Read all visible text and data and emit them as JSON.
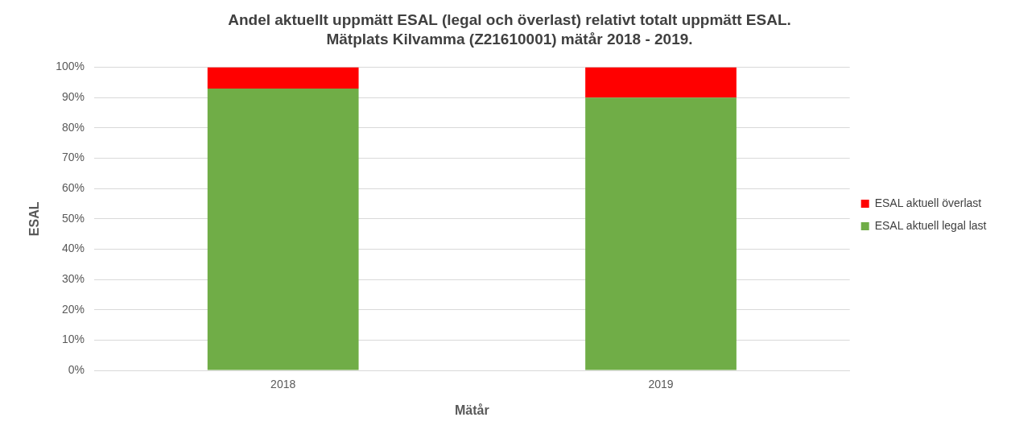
{
  "chart_data": {
    "type": "bar",
    "title": "Andel aktuellt uppmätt ESAL (legal och överlast) relativt totalt uppmätt ESAL.",
    "subtitle": "Mätplats Kilvamma (Z21610001) mätår 2018 - 2019.",
    "xlabel": "Mätår",
    "ylabel": "ESAL",
    "categories": [
      "2018",
      "2019"
    ],
    "stacked": true,
    "series": [
      {
        "name": "ESAL aktuell legal last",
        "color": "#70ad47",
        "values": [
          93,
          90
        ]
      },
      {
        "name": "ESAL aktuell överlast",
        "color": "#ff0000",
        "values": [
          7,
          10
        ]
      }
    ],
    "ylim": [
      0,
      100
    ],
    "yticks": [
      {
        "value": 0,
        "label": "0%"
      },
      {
        "value": 10,
        "label": "10%"
      },
      {
        "value": 20,
        "label": "20%"
      },
      {
        "value": 30,
        "label": "30%"
      },
      {
        "value": 40,
        "label": "40%"
      },
      {
        "value": 50,
        "label": "50%"
      },
      {
        "value": 60,
        "label": "60%"
      },
      {
        "value": 70,
        "label": "70%"
      },
      {
        "value": 80,
        "label": "80%"
      },
      {
        "value": 90,
        "label": "90%"
      },
      {
        "value": 100,
        "label": "100%"
      }
    ],
    "grid": "y",
    "legend": "right"
  }
}
